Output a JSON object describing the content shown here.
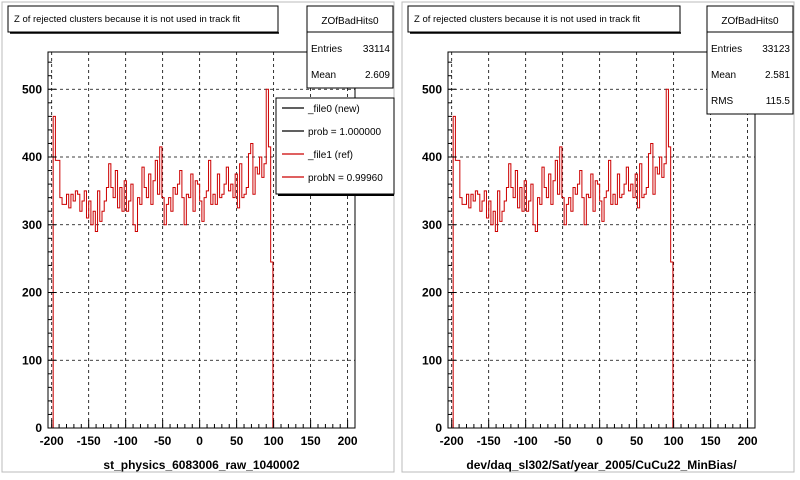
{
  "footer_note": "",
  "chart_data": [
    {
      "type": "histogram",
      "title": "Z of rejected clusters  because it is not used in track fit",
      "xlabel": "st_physics_6083006_raw_1040002",
      "ylabel": "",
      "x_ticks": [
        -200,
        -150,
        -100,
        -50,
        0,
        50,
        100,
        150,
        200
      ],
      "y_ticks": [
        0,
        100,
        200,
        300,
        400,
        500
      ],
      "xlim": [
        -205,
        210
      ],
      "ylim": [
        0,
        555
      ],
      "grid": true,
      "stats": {
        "name": "ZOfBadHits0",
        "entries_label": "Entries",
        "entries": "33114",
        "mean_label": "Mean",
        "mean": "2.609",
        "rms_label": "",
        "rms": ""
      },
      "legend": {
        "placement": "top-right",
        "entries": [
          {
            "label": "_file0 (new)",
            "color": "#000000"
          },
          {
            "label": "prob = 1.000000",
            "color": "#000000"
          },
          {
            "label": "_file1 (ref)",
            "color": "#cc0000"
          },
          {
            "label": "probN = 0.99960",
            "color": "#cc0000"
          }
        ]
      },
      "series": [
        {
          "color": "#cc0000",
          "x_start": -198,
          "bin_width": 3,
          "values": [
            460,
            395,
            395,
            340,
            330,
            330,
            345,
            325,
            345,
            335,
            350,
            345,
            320,
            335,
            350,
            310,
            335,
            300,
            320,
            290,
            350,
            305,
            320,
            335,
            355,
            390,
            355,
            340,
            380,
            325,
            355,
            320,
            365,
            320,
            335,
            360,
            300,
            290,
            340,
            330,
            385,
            355,
            340,
            375,
            330,
            365,
            395,
            345,
            415,
            340,
            300,
            330,
            340,
            320,
            355,
            345,
            360,
            380,
            340,
            300,
            345,
            340,
            375,
            320,
            365,
            360,
            335,
            305,
            340,
            350,
            395,
            330,
            345,
            330,
            375,
            340,
            345,
            360,
            385,
            350,
            360,
            340,
            375,
            325,
            390,
            340,
            345,
            355,
            405,
            420,
            345,
            385,
            375,
            400,
            370,
            390,
            500,
            415,
            245,
            0
          ]
        }
      ]
    },
    {
      "type": "histogram",
      "title": "Z of rejected clusters  because it is not used in track fit",
      "xlabel": "dev/daq_sl302/Sat/year_2005/CuCu22_MinBias/",
      "ylabel": "",
      "x_ticks": [
        -200,
        -150,
        -100,
        -50,
        0,
        50,
        100,
        150,
        200
      ],
      "y_ticks": [
        0,
        100,
        200,
        300,
        400,
        500
      ],
      "xlim": [
        -205,
        210
      ],
      "ylim": [
        0,
        555
      ],
      "grid": true,
      "stats": {
        "name": "ZOfBadHits0",
        "entries_label": "Entries",
        "entries": "33123",
        "mean_label": "Mean",
        "mean": "2.581",
        "rms_label": "RMS",
        "rms": "115.5"
      },
      "legend": null,
      "series": [
        {
          "color": "#cc0000",
          "x_start": -198,
          "bin_width": 3,
          "values": [
            460,
            395,
            395,
            340,
            330,
            330,
            345,
            325,
            345,
            335,
            350,
            345,
            320,
            335,
            350,
            310,
            335,
            300,
            320,
            290,
            350,
            305,
            320,
            335,
            355,
            390,
            355,
            340,
            380,
            325,
            355,
            320,
            365,
            320,
            335,
            360,
            300,
            290,
            340,
            330,
            385,
            355,
            340,
            375,
            330,
            365,
            395,
            345,
            415,
            340,
            300,
            330,
            340,
            320,
            355,
            345,
            360,
            380,
            340,
            300,
            345,
            340,
            375,
            320,
            365,
            360,
            335,
            305,
            340,
            350,
            395,
            330,
            345,
            330,
            375,
            340,
            345,
            360,
            385,
            350,
            360,
            340,
            375,
            325,
            390,
            340,
            345,
            355,
            405,
            420,
            345,
            385,
            375,
            400,
            370,
            390,
            500,
            415,
            245,
            0
          ]
        }
      ]
    }
  ]
}
